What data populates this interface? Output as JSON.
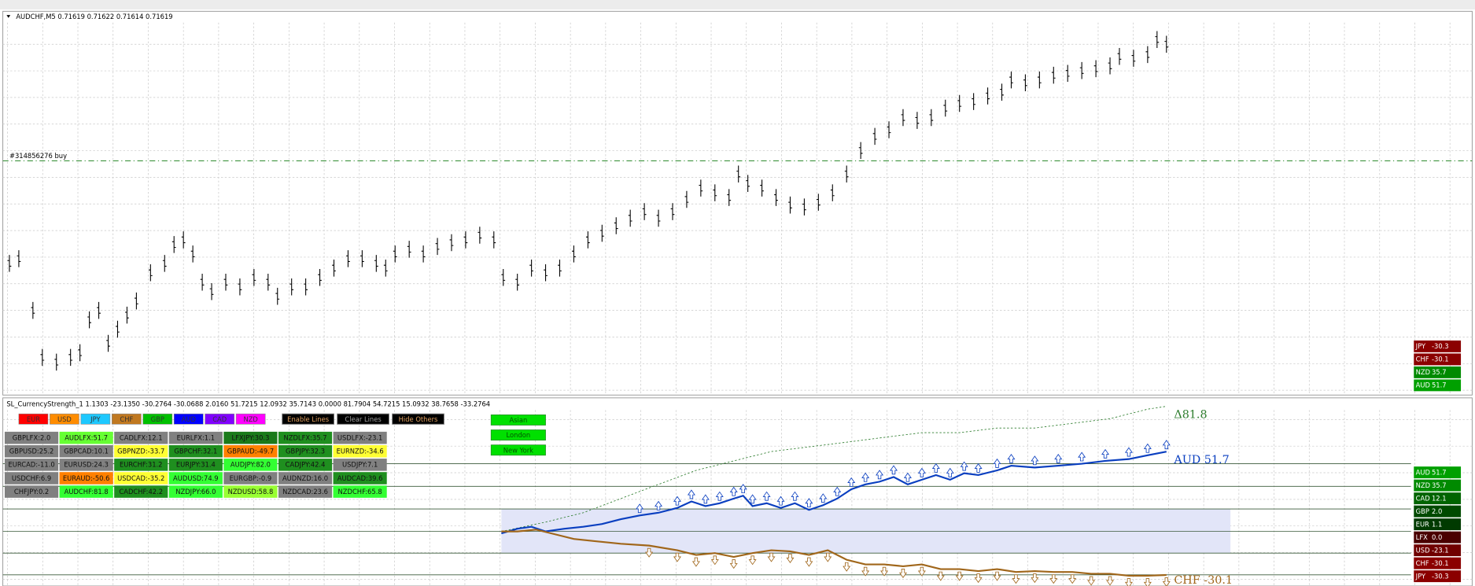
{
  "window_title": "AUDCHF,M5  0.71619 0.71622 0.71614 0.71619",
  "price_chart": {
    "type": "bars",
    "color": "#000000",
    "xlim": [
      0,
      1568
    ],
    "ylim": [
      0,
      408
    ],
    "x": [
      10,
      20,
      35,
      45,
      60,
      75,
      85,
      95,
      105,
      115,
      125,
      135,
      145,
      160,
      175,
      185,
      195,
      205,
      215,
      225,
      240,
      255,
      270,
      285,
      295,
      310,
      325,
      340,
      355,
      370,
      385,
      400,
      410,
      420,
      435,
      450,
      465,
      480,
      495,
      510,
      525,
      535,
      550,
      565,
      580,
      595,
      610,
      625,
      640,
      655,
      670,
      685,
      700,
      715,
      730,
      745,
      760,
      775,
      785,
      795,
      810,
      825,
      840,
      855,
      870,
      885,
      900,
      915,
      930,
      945,
      960,
      975,
      990,
      1005,
      1020,
      1035,
      1050,
      1065,
      1075,
      1090,
      1105,
      1120,
      1135,
      1150,
      1165,
      1180,
      1190,
      1205,
      1220,
      1230,
      1240
    ],
    "values": [
      140,
      145,
      90,
      40,
      35,
      40,
      45,
      80,
      90,
      55,
      70,
      85,
      100,
      130,
      140,
      160,
      165,
      150,
      120,
      110,
      120,
      115,
      125,
      120,
      105,
      115,
      115,
      125,
      135,
      145,
      145,
      140,
      135,
      150,
      155,
      150,
      158,
      162,
      165,
      170,
      165,
      125,
      120,
      135,
      130,
      135,
      150,
      165,
      172,
      180,
      188,
      195,
      188,
      195,
      208,
      220,
      215,
      210,
      235,
      225,
      220,
      210,
      202,
      200,
      205,
      215,
      235,
      260,
      275,
      282,
      295,
      292,
      295,
      305,
      310,
      312,
      318,
      322,
      335,
      332,
      335,
      340,
      342,
      345,
      347,
      350,
      360,
      358,
      362,
      378,
      373
    ],
    "grid": true
  },
  "order_line": {
    "label": "#314856276 buy",
    "value": 249,
    "color": "#2e8b2e"
  },
  "top_panel": [
    {
      "currency": "JPY",
      "value": "-30.3",
      "color": "#8b0000"
    },
    {
      "currency": "CHF",
      "value": "-30.1",
      "color": "#8b0000"
    },
    {
      "currency": "NZD",
      "value": "35.7",
      "color": "#008a00"
    },
    {
      "currency": "AUD",
      "value": "51.7",
      "color": "#00a000"
    }
  ],
  "indicator_header": "SL_CurrencyStrength_1 1.1303 -23.1350 -30.2764 -30.0688 2.0160 51.7215 12.0932 35.7143 0.0000 81.7904 54.7215 15.0932 38.7658 -33.2764",
  "currency_buttons": [
    {
      "label": "EUR",
      "color": "#ff0000"
    },
    {
      "label": "USD",
      "color": "#ff8c00"
    },
    {
      "label": "JPY",
      "color": "#1ec8ff"
    },
    {
      "label": "CHF",
      "color": "#c07820"
    },
    {
      "label": "GBP",
      "color": "#00c000"
    },
    {
      "label": "AUD",
      "color": "#0000ff"
    },
    {
      "label": "CAD",
      "color": "#8000ff"
    },
    {
      "label": "NZD",
      "color": "#ff00ff"
    }
  ],
  "control_buttons": [
    {
      "label": "Enable Lines",
      "color": "#e0a060"
    },
    {
      "label": "Clear Lines",
      "color": "#a0a0a0"
    },
    {
      "label": "Hide Others",
      "color": "#e0a060"
    }
  ],
  "pair_table": {
    "rows": [
      [
        {
          "text": "GBPLFX:2.0",
          "color": "#808080"
        },
        {
          "text": "AUDLFX:51.7",
          "color": "#66ff33"
        },
        {
          "text": "CADLFX:12.1",
          "color": "#808080"
        },
        {
          "text": "EURLFX:1.1",
          "color": "#808080"
        },
        {
          "text": "LFXJPY:30.3",
          "color": "#1a7a1a"
        },
        {
          "text": "NZDLFX:35.7",
          "color": "#1f8f1f"
        },
        {
          "text": "USDLFX:-23.1",
          "color": "#808080"
        }
      ],
      [
        {
          "text": "GBPUSD:25.2",
          "color": "#808080"
        },
        {
          "text": "GBPCAD:10.1",
          "color": "#808080"
        },
        {
          "text": "GBPNZD:-33.7",
          "color": "#ffff33"
        },
        {
          "text": "GBPCHF:32.1",
          "color": "#1f8f1f"
        },
        {
          "text": "GBPAUD:-49.7",
          "color": "#ff8000"
        },
        {
          "text": "GBPJPY:32.3",
          "color": "#1f8f1f"
        },
        {
          "text": "EURNZD:-34.6",
          "color": "#ffff33"
        }
      ],
      [
        {
          "text": "EURCAD:-11.0",
          "color": "#808080"
        },
        {
          "text": "EURUSD:24.3",
          "color": "#808080"
        },
        {
          "text": "EURCHF:31.2",
          "color": "#1f8f1f"
        },
        {
          "text": "EURJPY:31.4",
          "color": "#1f8f1f"
        },
        {
          "text": "AUDJPY:82.0",
          "color": "#33ff33"
        },
        {
          "text": "CADJPY:42.4",
          "color": "#1f8f1f"
        },
        {
          "text": "USDJPY:7.1",
          "color": "#808080"
        }
      ],
      [
        {
          "text": "USDCHF:6.9",
          "color": "#808080"
        },
        {
          "text": "EURAUD:-50.6",
          "color": "#ff8000"
        },
        {
          "text": "USDCAD:-35.2",
          "color": "#ffff33"
        },
        {
          "text": "AUDUSD:74.9",
          "color": "#33ff33"
        },
        {
          "text": "EURGBP:-0.9",
          "color": "#808080"
        },
        {
          "text": "AUDNZD:16.0",
          "color": "#808080"
        },
        {
          "text": "AUDCAD:39.6",
          "color": "#1f8f1f"
        }
      ],
      [
        {
          "text": "CHFJPY:0.2",
          "color": "#808080"
        },
        {
          "text": "AUDCHF:81.8",
          "color": "#33ff33"
        },
        {
          "text": "CADCHF:42.2",
          "color": "#1f8f1f"
        },
        {
          "text": "NZDJPY:66.0",
          "color": "#33ff33"
        },
        {
          "text": "NZDUSD:58.8",
          "color": "#99ff33"
        },
        {
          "text": "NZDCAD:23.6",
          "color": "#808080"
        },
        {
          "text": "NZDCHF:65.8",
          "color": "#33ff33"
        }
      ]
    ]
  },
  "session_buttons": [
    "Asian",
    "London",
    "New York"
  ],
  "indicator": {
    "type": "line",
    "xlim": [
      0,
      1568
    ],
    "ylim": [
      -37.4,
      87.4
    ],
    "levels": [
      43.7,
      28.7,
      13.7,
      -1.2,
      -15.6,
      -30.0
    ],
    "band": [
      13.7,
      -15.6
    ],
    "band_color": "#e2e5f8",
    "series": [
      {
        "label": "Δ81.8",
        "color": "#2e7d2e",
        "dashed": true,
        "x": [
          533,
          580,
          620,
          660,
          700,
          740,
          780,
          820,
          860,
          900,
          940,
          980,
          1020,
          1060,
          1100,
          1140,
          1180,
          1220,
          1240
        ],
        "values": [
          -1.2,
          5.0,
          11.2,
          20.6,
          30.0,
          39.3,
          45.6,
          51.8,
          54.9,
          58.0,
          61.2,
          64.3,
          64.3,
          67.4,
          67.4,
          70.5,
          73.6,
          79.9,
          81.8
        ]
      },
      {
        "label": "AUD  51.7",
        "color": "#0a3fc0",
        "arrow": "up",
        "x": [
          533,
          550,
          565,
          580,
          600,
          620,
          640,
          660,
          680,
          700,
          720,
          735,
          750,
          765,
          780,
          790,
          800,
          815,
          830,
          845,
          860,
          875,
          890,
          905,
          920,
          935,
          950,
          965,
          980,
          995,
          1010,
          1025,
          1040,
          1060,
          1075,
          1100,
          1125,
          1150,
          1175,
          1200,
          1220,
          1240
        ],
        "values": [
          -2.5,
          0.6,
          1.9,
          -1.2,
          0.6,
          1.9,
          3.7,
          6.9,
          9.4,
          11.2,
          14.4,
          18.7,
          15.6,
          17.5,
          20.6,
          22.5,
          15.6,
          17.5,
          14.4,
          17.5,
          13.1,
          16.2,
          20.6,
          26.8,
          30.0,
          31.8,
          34.9,
          30.0,
          33.1,
          36.2,
          33.1,
          37.4,
          36.2,
          39.3,
          42.4,
          41.2,
          42.4,
          43.7,
          45.6,
          46.8,
          49.3,
          51.7
        ]
      },
      {
        "label": "CHF  -30.1",
        "color": "#a0661a",
        "arrow": "down",
        "x": [
          533,
          550,
          570,
          590,
          610,
          630,
          660,
          690,
          720,
          740,
          760,
          780,
          800,
          820,
          840,
          860,
          880,
          900,
          920,
          940,
          960,
          980,
          1000,
          1020,
          1040,
          1060,
          1080,
          1100,
          1120,
          1140,
          1160,
          1180,
          1200,
          1220,
          1240
        ],
        "values": [
          -1.2,
          -1.2,
          0,
          -3.1,
          -6.2,
          -7.5,
          -9.4,
          -10.6,
          -13.7,
          -16.8,
          -15.6,
          -18.1,
          -15.6,
          -13.7,
          -14.4,
          -16.8,
          -13.7,
          -20.0,
          -23.1,
          -23.1,
          -24.3,
          -23.1,
          -26.2,
          -26.2,
          -27.5,
          -26.2,
          -28.1,
          -27.5,
          -28.1,
          -28.1,
          -29.3,
          -29.3,
          -30.6,
          -30.6,
          -30.1
        ]
      }
    ]
  },
  "bottom_panel": [
    {
      "currency": "AUD",
      "value": "51.7",
      "color": "#00a000"
    },
    {
      "currency": "NZD",
      "value": "35.7",
      "color": "#008a00"
    },
    {
      "currency": "CAD",
      "value": "12.1",
      "color": "#006400"
    },
    {
      "currency": "GBP",
      "value": "2.0",
      "color": "#004a00"
    },
    {
      "currency": "EUR",
      "value": "1.1",
      "color": "#003a00"
    },
    {
      "currency": "LFX",
      "value": "0.0",
      "color": "#4a0000"
    },
    {
      "currency": "USD",
      "value": "-23.1",
      "color": "#700000"
    },
    {
      "currency": "CHF",
      "value": "-30.1",
      "color": "#8b0000"
    },
    {
      "currency": "JPY",
      "value": "-30.3",
      "color": "#8b0000"
    }
  ]
}
